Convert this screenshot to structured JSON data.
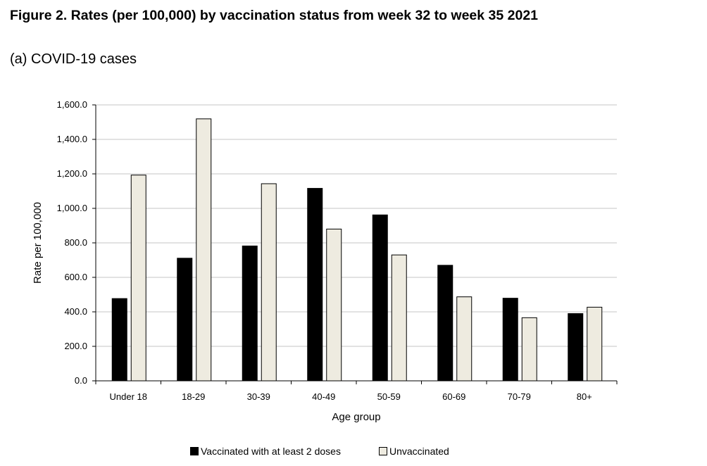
{
  "title": "Figure 2. Rates (per 100,000) by vaccination status from week 32 to week 35 2021",
  "subtitle": "(a) COVID-19 cases",
  "chart_data": {
    "type": "bar",
    "xlabel": "Age group",
    "ylabel": "Rate per 100,000",
    "ylim": [
      0,
      1600
    ],
    "yticks": [
      "0.0",
      "200.0",
      "400.0",
      "600.0",
      "800.0",
      "1,000.0",
      "1,200.0",
      "1,400.0",
      "1,600.0"
    ],
    "grid": true,
    "legend_position": "bottom",
    "categories": [
      "Under 18",
      "18-29",
      "30-39",
      "40-49",
      "50-59",
      "60-69",
      "70-79",
      "80+"
    ],
    "series": [
      {
        "name": "Vaccinated with at least 2 doses",
        "color": "#000000",
        "values": [
          477,
          711,
          782,
          1116,
          962,
          670,
          479,
          390
        ]
      },
      {
        "name": "Unvaccinated",
        "color": "#eeebe0",
        "values": [
          1193,
          1519,
          1143,
          880,
          730,
          487,
          366,
          427
        ]
      }
    ]
  }
}
